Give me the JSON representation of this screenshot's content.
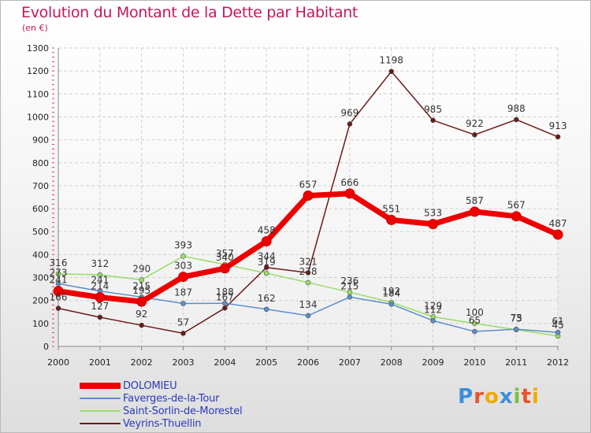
{
  "title": "Evolution du Montant de la Dette par Habitant",
  "unit_label": "(en €)",
  "logo": {
    "text": "Proxiti",
    "colors": [
      "#3b8fd9",
      "#e8532b",
      "#f2a900",
      "#3b8fd9",
      "#7bc043",
      "#e8532b",
      "#f2a900"
    ]
  },
  "chart_data": {
    "type": "line",
    "title": "Evolution du Montant de la Dette par Habitant",
    "xlabel": "",
    "ylabel": "(en €)",
    "ylim": [
      0,
      1300
    ],
    "yticks": [
      0,
      100,
      200,
      300,
      400,
      500,
      600,
      700,
      800,
      900,
      1000,
      1100,
      1200,
      1300
    ],
    "grid": true,
    "legend_position": "bottom-left",
    "categories": [
      "2000",
      "2001",
      "2002",
      "2003",
      "2004",
      "2005",
      "2006",
      "2007",
      "2008",
      "2009",
      "2010",
      "2011",
      "2012"
    ],
    "series": [
      {
        "name": "DOLOMIEU",
        "color": "#ee0000",
        "values": [
          241,
          214,
          195,
          303,
          340,
          458,
          657,
          666,
          551,
          533,
          587,
          567,
          487
        ]
      },
      {
        "name": "Faverges-de-la-Tour",
        "color": "#5b8fc7",
        "values": [
          273,
          241,
          215,
          187,
          188,
          162,
          134,
          215,
          184,
          112,
          65,
          75,
          61
        ]
      },
      {
        "name": "Saint-Sorlin-de-Morestel",
        "color": "#99dd66",
        "values": [
          316,
          312,
          290,
          393,
          357,
          319,
          278,
          236,
          192,
          129,
          100,
          73,
          45
        ]
      },
      {
        "name": "Veyrins-Thuellin",
        "color": "#6b1a1a",
        "values": [
          166,
          127,
          92,
          57,
          167,
          344,
          321,
          969,
          1198,
          985,
          922,
          988,
          913
        ]
      }
    ]
  }
}
